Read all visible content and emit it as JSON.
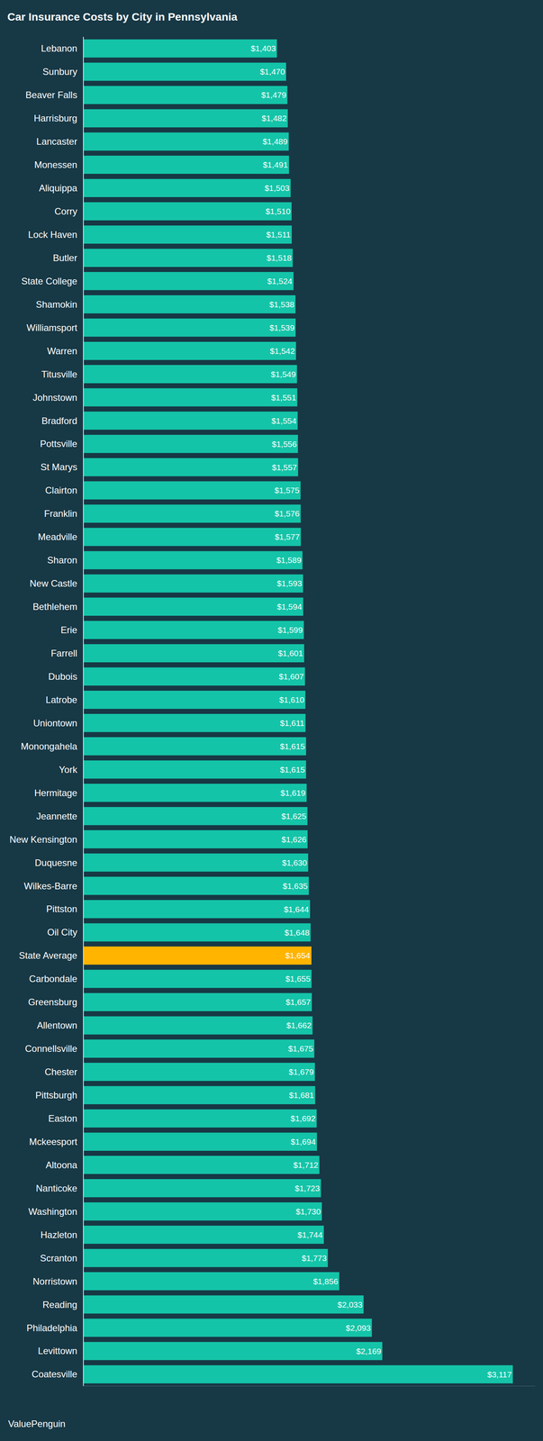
{
  "chart_data": {
    "type": "bar",
    "orientation": "horizontal",
    "title": "Car Insurance Costs by City in Pennsylvania",
    "annotations": [
      "ValuePenguin"
    ],
    "categories": [
      "Lebanon",
      "Sunbury",
      "Beaver Falls",
      "Harrisburg",
      "Lancaster",
      "Monessen",
      "Aliquippa",
      "Corry",
      "Lock Haven",
      "Butler",
      "State College",
      "Shamokin",
      "Williamsport",
      "Warren",
      "Titusville",
      "Johnstown",
      "Bradford",
      "Pottsville",
      "St Marys",
      "Clairton",
      "Franklin",
      "Meadville",
      "Sharon",
      "New Castle",
      "Bethlehem",
      "Erie",
      "Farrell",
      "Dubois",
      "Latrobe",
      "Uniontown",
      "Monongahela",
      "York",
      "Hermitage",
      "Jeannette",
      "New Kensington",
      "Duquesne",
      "Wilkes-Barre",
      "Pittston",
      "Oil City",
      "State Average",
      "Carbondale",
      "Greensburg",
      "Allentown",
      "Connellsville",
      "Chester",
      "Pittsburgh",
      "Easton",
      "Mckeesport",
      "Altoona",
      "Nanticoke",
      "Washington",
      "Hazleton",
      "Scranton",
      "Norristown",
      "Reading",
      "Philadelphia",
      "Levittown",
      "Coatesville"
    ],
    "values": [
      1403,
      1470,
      1479,
      1482,
      1489,
      1491,
      1503,
      1510,
      1511,
      1518,
      1524,
      1538,
      1539,
      1542,
      1549,
      1551,
      1554,
      1556,
      1557,
      1575,
      1576,
      1577,
      1589,
      1593,
      1594,
      1599,
      1601,
      1607,
      1610,
      1611,
      1615,
      1615,
      1619,
      1625,
      1626,
      1630,
      1635,
      1644,
      1648,
      1654,
      1655,
      1657,
      1662,
      1675,
      1679,
      1681,
      1692,
      1694,
      1712,
      1723,
      1730,
      1744,
      1773,
      1856,
      2033,
      2093,
      2169,
      3117
    ],
    "value_labels": [
      "$1,403",
      "$1,470",
      "$1,479",
      "$1,482",
      "$1,489",
      "$1,491",
      "$1,503",
      "$1,510",
      "$1,511",
      "$1,518",
      "$1,524",
      "$1,538",
      "$1,539",
      "$1,542",
      "$1,549",
      "$1,551",
      "$1,554",
      "$1,556",
      "$1,557",
      "$1,575",
      "$1,576",
      "$1,577",
      "$1,589",
      "$1,593",
      "$1,594",
      "$1,599",
      "$1,601",
      "$1,607",
      "$1,610",
      "$1,611",
      "$1,615",
      "$1,615",
      "$1,619",
      "$1,625",
      "$1,626",
      "$1,630",
      "$1,635",
      "$1,644",
      "$1,648",
      "$1,654",
      "$1,655",
      "$1,657",
      "$1,662",
      "$1,675",
      "$1,679",
      "$1,681",
      "$1,692",
      "$1,694",
      "$1,712",
      "$1,723",
      "$1,730",
      "$1,744",
      "$1,773",
      "$1,856",
      "$2,033",
      "$2,093",
      "$2,169",
      "$3,117"
    ],
    "colors": [
      "#14c4a8",
      "#14c4a8",
      "#14c4a8",
      "#14c4a8",
      "#14c4a8",
      "#14c4a8",
      "#14c4a8",
      "#14c4a8",
      "#14c4a8",
      "#14c4a8",
      "#14c4a8",
      "#14c4a8",
      "#14c4a8",
      "#14c4a8",
      "#14c4a8",
      "#14c4a8",
      "#14c4a8",
      "#14c4a8",
      "#14c4a8",
      "#14c4a8",
      "#14c4a8",
      "#14c4a8",
      "#14c4a8",
      "#14c4a8",
      "#14c4a8",
      "#14c4a8",
      "#14c4a8",
      "#14c4a8",
      "#14c4a8",
      "#14c4a8",
      "#14c4a8",
      "#14c4a8",
      "#14c4a8",
      "#14c4a8",
      "#14c4a8",
      "#14c4a8",
      "#14c4a8",
      "#14c4a8",
      "#14c4a8",
      "#ffb400",
      "#14c4a8",
      "#14c4a8",
      "#14c4a8",
      "#14c4a8",
      "#14c4a8",
      "#14c4a8",
      "#14c4a8",
      "#14c4a8",
      "#14c4a8",
      "#14c4a8",
      "#14c4a8",
      "#14c4a8",
      "#14c4a8",
      "#14c4a8",
      "#14c4a8",
      "#14c4a8",
      "#14c4a8",
      "#14c4a8"
    ],
    "xlim": [
      0,
      3280
    ],
    "grid": false,
    "data_labels": true,
    "tick_labels": "y"
  }
}
